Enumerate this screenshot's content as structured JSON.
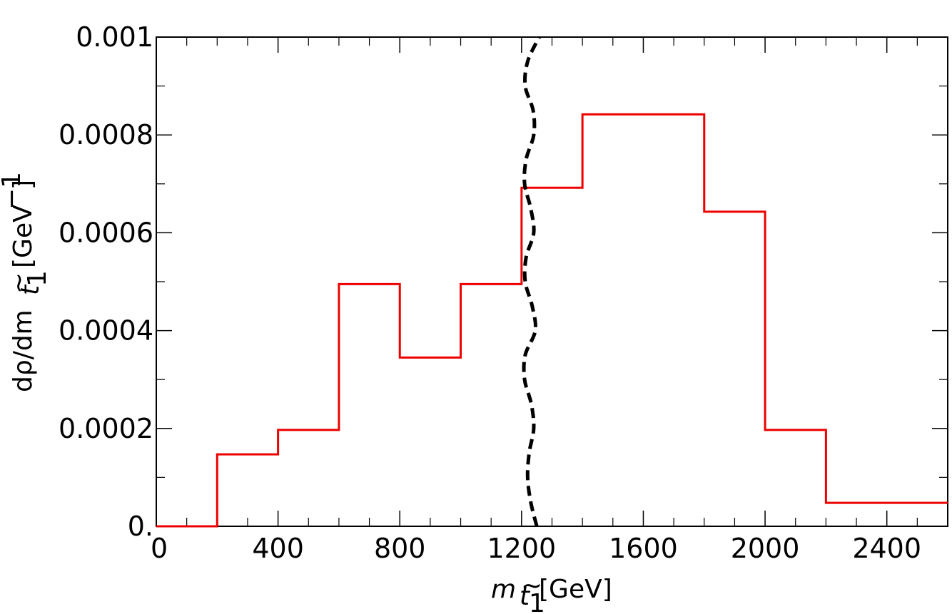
{
  "chart_data": {
    "type": "step-histogram",
    "xlim": [
      0,
      2600
    ],
    "ylim": [
      0,
      0.001
    ],
    "x_ticks": [
      "0",
      "400",
      "800",
      "1200",
      "1600",
      "2000",
      "2400"
    ],
    "x_tick_values": [
      0,
      400,
      800,
      1200,
      1600,
      2000,
      2400
    ],
    "x_minor_step": 100,
    "y_ticks": [
      "0.",
      "0.0002",
      "0.0004",
      "0.0006",
      "0.0008",
      "0.001"
    ],
    "y_tick_values": [
      0,
      0.0002,
      0.0004,
      0.0006,
      0.0008,
      0.001
    ],
    "y_minor_step": 0.0001,
    "xlabel": {
      "symbol": "m",
      "sub_main": "t",
      "sub_tilde": "~",
      "sub_index": "1",
      "unit": "[GeV]"
    },
    "ylabel": {
      "prefix": "dρ/dm",
      "sub_main": "t",
      "sub_tilde": "~",
      "sub_index": "1",
      "unit_open": "[GeV",
      "unit_exp": "−1",
      "unit_close": "]"
    },
    "histogram": {
      "color": "#ee0000",
      "bin_edges": [
        0,
        200,
        400,
        600,
        800,
        1000,
        1200,
        1400,
        1800,
        2000,
        2200,
        2600
      ],
      "values": [
        0,
        0.000147,
        0.000197,
        0.000495,
        0.000345,
        0.000495,
        0.000692,
        0.000842,
        0.000643,
        0.000197,
        4.8e-05
      ]
    },
    "dashed_curve": {
      "color": "#000000",
      "points": [
        [
          1250,
          0.0
        ],
        [
          1230,
          5e-05
        ],
        [
          1220,
          0.0001
        ],
        [
          1225,
          0.00015
        ],
        [
          1240,
          0.0002
        ],
        [
          1232,
          0.00025
        ],
        [
          1210,
          0.0003
        ],
        [
          1212,
          0.00035
        ],
        [
          1245,
          0.0004
        ],
        [
          1235,
          0.00045
        ],
        [
          1212,
          0.0005
        ],
        [
          1215,
          0.00055
        ],
        [
          1240,
          0.0006
        ],
        [
          1230,
          0.00065
        ],
        [
          1210,
          0.0007
        ],
        [
          1215,
          0.00075
        ],
        [
          1240,
          0.0008
        ],
        [
          1238,
          0.00085
        ],
        [
          1212,
          0.0009
        ],
        [
          1220,
          0.00095
        ],
        [
          1258,
          0.001
        ]
      ]
    }
  }
}
